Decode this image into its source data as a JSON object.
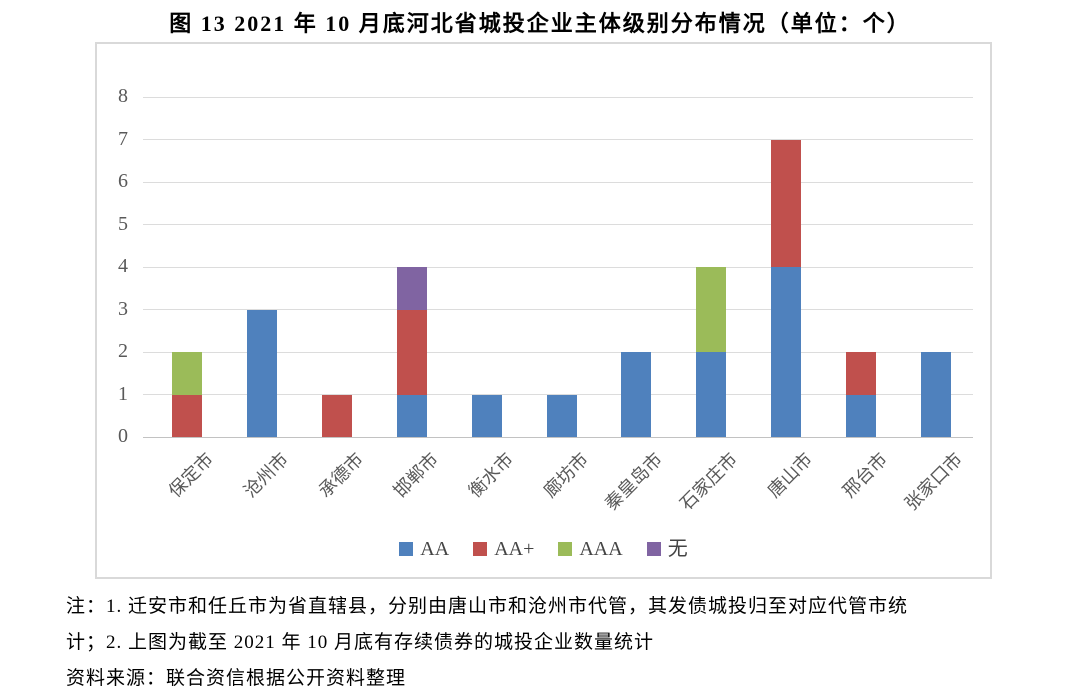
{
  "title": "图 13  2021 年 10 月底河北省城投企业主体级别分布情况（单位：个）",
  "chart_data": {
    "type": "bar",
    "stacked": true,
    "title": "图 13  2021 年 10 月底河北省城投企业主体级别分布情况（单位：个）",
    "unit": "个",
    "categories": [
      "保定市",
      "沧州市",
      "承德市",
      "邯郸市",
      "衡水市",
      "廊坊市",
      "秦皇岛市",
      "石家庄市",
      "唐山市",
      "邢台市",
      "张家口市"
    ],
    "series": [
      {
        "name": "AA",
        "color": "#4F81BD",
        "values": [
          0,
          3,
          0,
          1,
          1,
          1,
          2,
          2,
          4,
          1,
          2
        ]
      },
      {
        "name": "AA+",
        "color": "#C0504D",
        "values": [
          1,
          0,
          1,
          2,
          0,
          0,
          0,
          0,
          3,
          1,
          0
        ]
      },
      {
        "name": "AAA",
        "color": "#9BBB59",
        "values": [
          1,
          0,
          0,
          0,
          0,
          0,
          0,
          2,
          0,
          0,
          0
        ]
      },
      {
        "name": "无",
        "color": "#8064A2",
        "values": [
          0,
          0,
          0,
          1,
          0,
          0,
          0,
          0,
          0,
          0,
          0
        ]
      }
    ],
    "ylim": [
      0,
      8
    ],
    "yticks": [
      0,
      1,
      2,
      3,
      4,
      5,
      6,
      7,
      8
    ],
    "grid": true,
    "legend_position": "bottom",
    "colors": {
      "axis_text": "#595959",
      "gridline": "#dcdcdc",
      "frame_border": "#d9d9d9"
    }
  },
  "notes": {
    "line1": "注：1. 迁安市和任丘市为省直辖县，分别由唐山市和沧州市代管，其发债城投归至对应代管市统",
    "line2": "计；2. 上图为截至 2021 年 10 月底有存续债券的城投企业数量统计",
    "source": "资料来源：联合资信根据公开资料整理"
  }
}
